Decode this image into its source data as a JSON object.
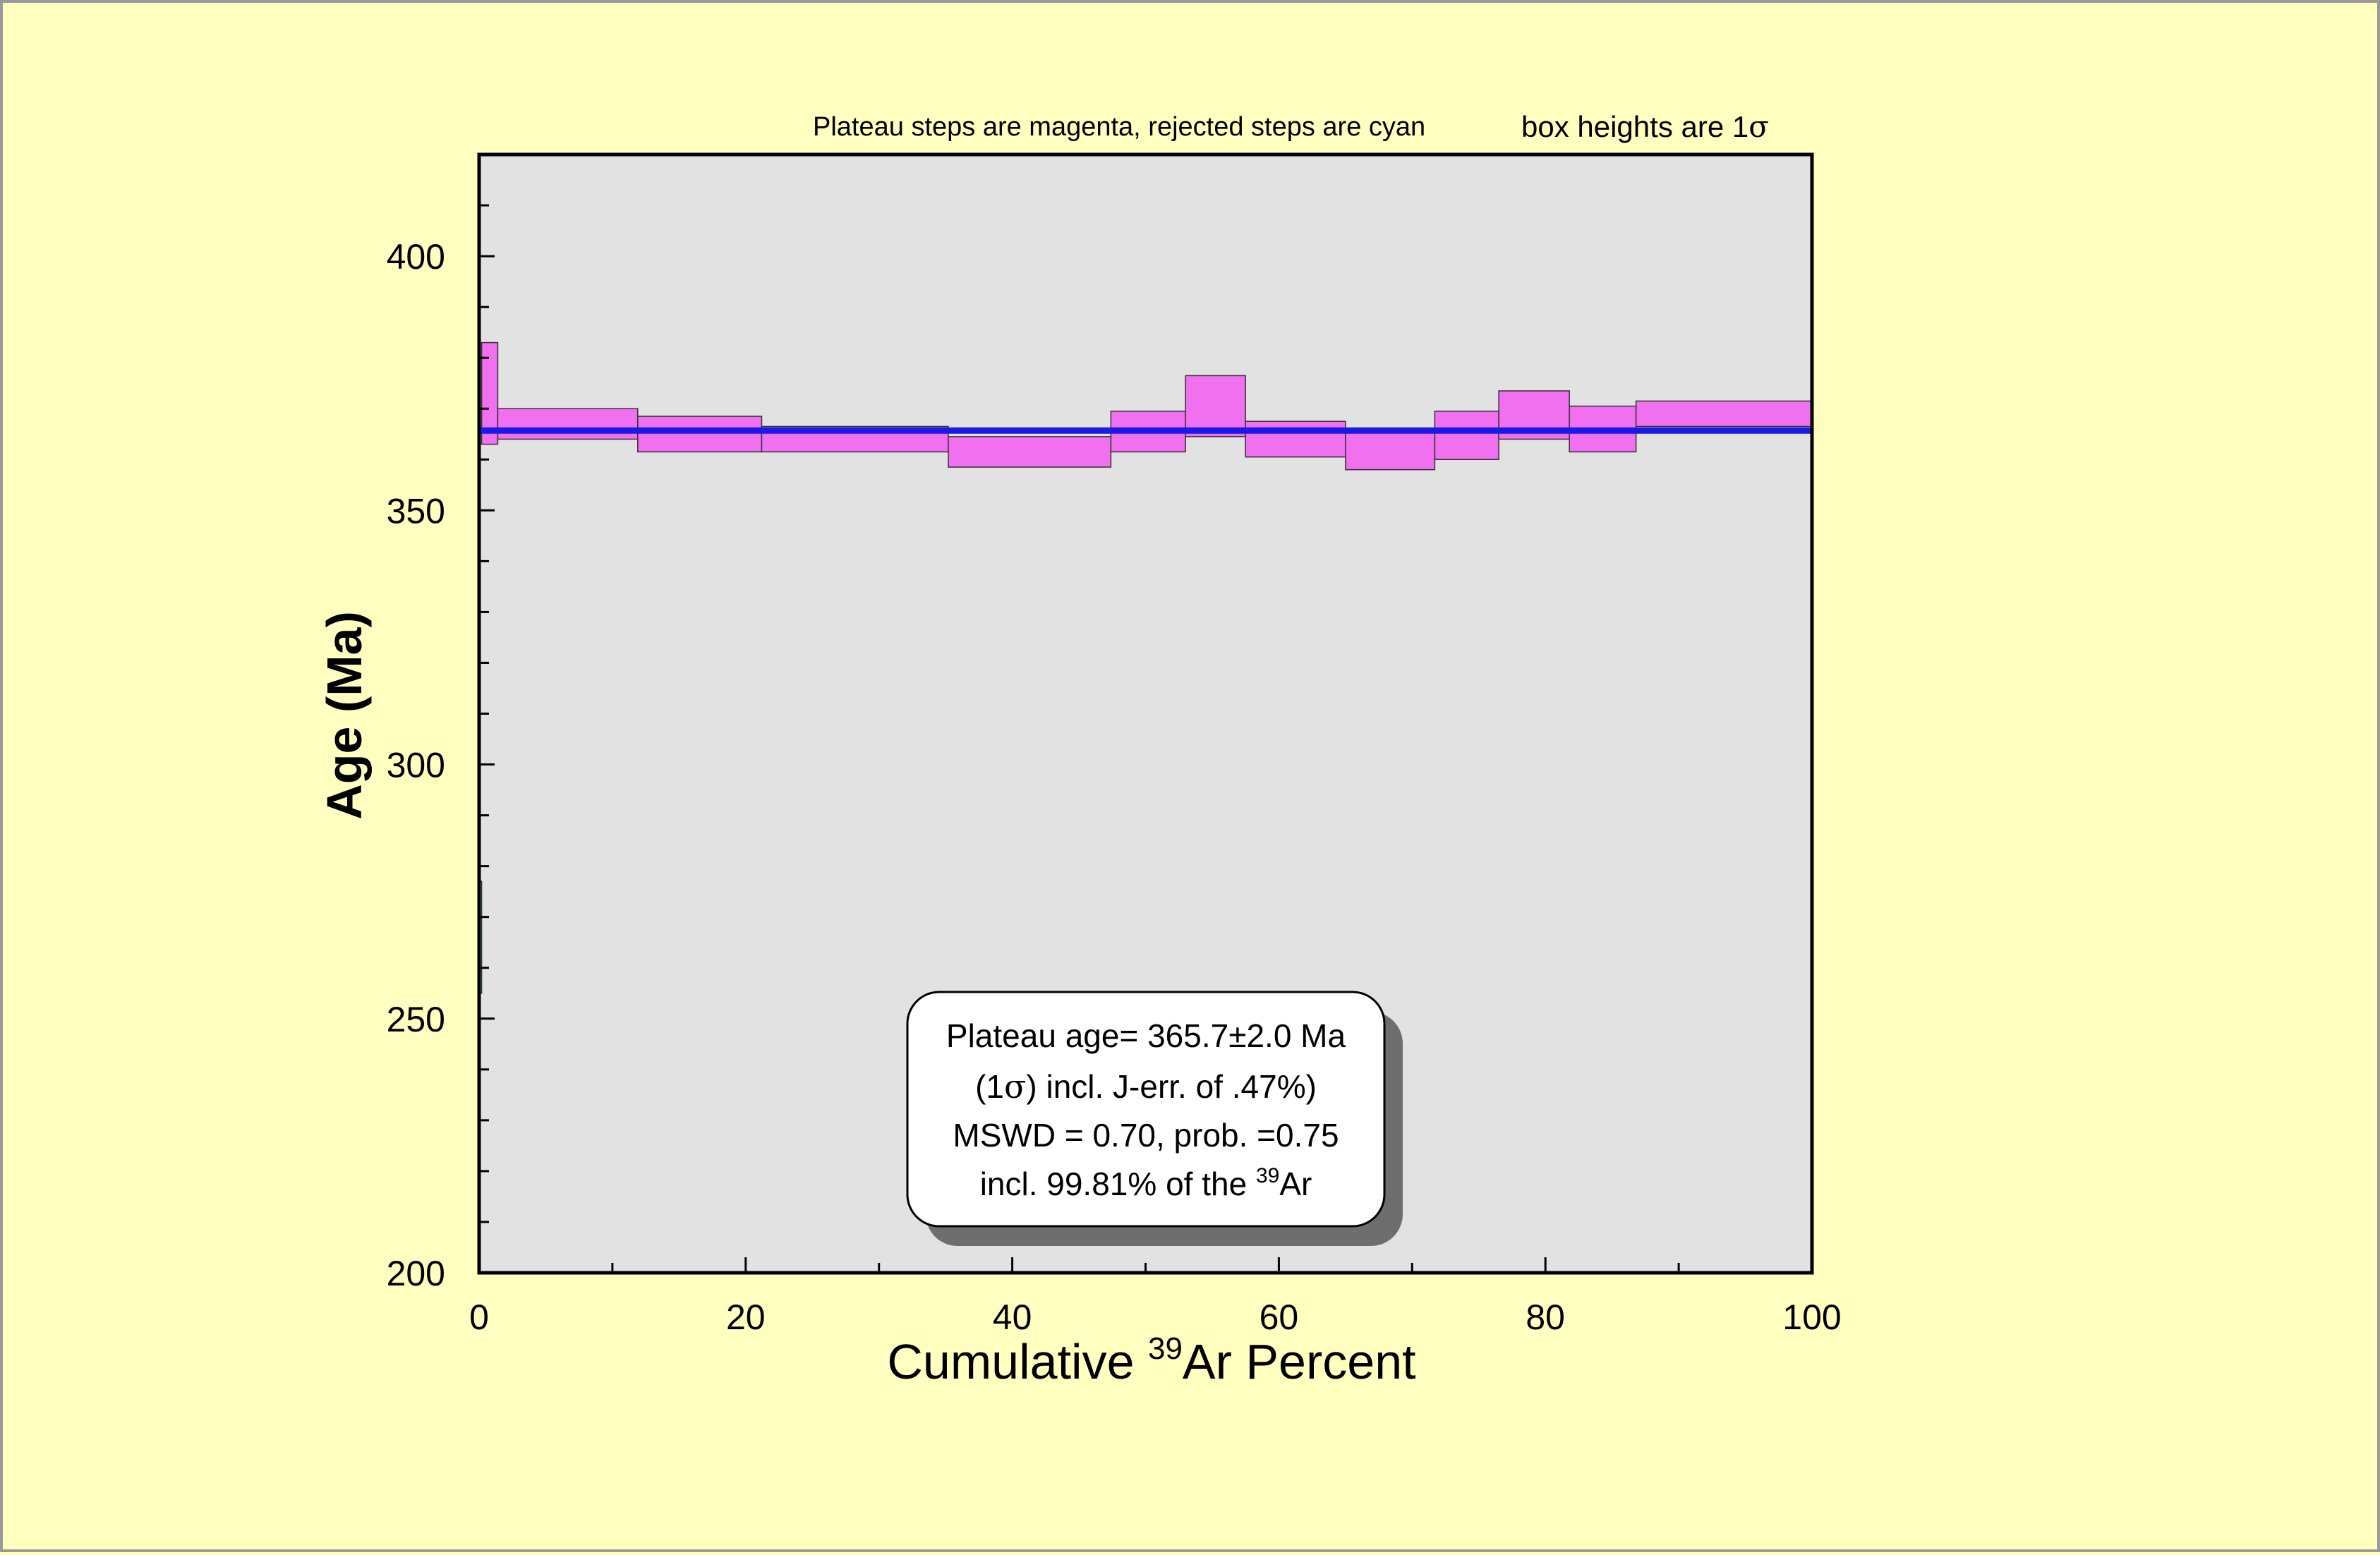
{
  "chart_data": {
    "type": "plateau",
    "notes": {
      "left": "Plateau steps are magenta, rejected steps are cyan",
      "right_prefix": "box heights are 1",
      "right_sigma": "σ"
    },
    "xlabel": {
      "prefix": "Cumulative ",
      "sup": "39",
      "suffix": "Ar Percent"
    },
    "ylabel": "Age (Ma)",
    "xlim": [
      0,
      100
    ],
    "ylim": [
      200,
      420
    ],
    "xticks": [
      0,
      20,
      40,
      60,
      80,
      100
    ],
    "xtick_labels": [
      "0",
      "20",
      "40",
      "60",
      "80",
      "100"
    ],
    "x_minor_step": 10,
    "yticks": [
      200,
      250,
      300,
      350,
      400
    ],
    "ytick_labels": [
      "200",
      "250",
      "300",
      "350",
      "400"
    ],
    "y_minor_step": 10,
    "plateau_age": 365.7,
    "colors": {
      "plot_bg": "#e2e2e2",
      "page_bg": "#ffffc0",
      "plateau_step": "#f070f0",
      "rejected_step": "#80f0f0",
      "plateau_line": "#1a1ae6",
      "border": "#000000"
    },
    "steps": [
      {
        "x0": 0.0,
        "x1": 0.19,
        "ylo": 255,
        "yhi": 277,
        "status": "rejected"
      },
      {
        "x0": 0.19,
        "x1": 1.4,
        "ylo": 363,
        "yhi": 383,
        "status": "plateau"
      },
      {
        "x0": 1.4,
        "x1": 11.9,
        "ylo": 364,
        "yhi": 370,
        "status": "plateau"
      },
      {
        "x0": 11.9,
        "x1": 21.2,
        "ylo": 361.5,
        "yhi": 368.5,
        "status": "plateau"
      },
      {
        "x0": 21.2,
        "x1": 35.2,
        "ylo": 361.5,
        "yhi": 366.5,
        "status": "plateau"
      },
      {
        "x0": 35.2,
        "x1": 47.4,
        "ylo": 358.5,
        "yhi": 364.5,
        "status": "plateau"
      },
      {
        "x0": 47.4,
        "x1": 53.0,
        "ylo": 361.5,
        "yhi": 369.5,
        "status": "plateau"
      },
      {
        "x0": 53.0,
        "x1": 57.5,
        "ylo": 364.5,
        "yhi": 376.5,
        "status": "plateau"
      },
      {
        "x0": 57.5,
        "x1": 65.0,
        "ylo": 360.5,
        "yhi": 367.5,
        "status": "plateau"
      },
      {
        "x0": 65.0,
        "x1": 71.7,
        "ylo": 358,
        "yhi": 365.5,
        "status": "plateau"
      },
      {
        "x0": 71.7,
        "x1": 76.5,
        "ylo": 360,
        "yhi": 369.5,
        "status": "plateau"
      },
      {
        "x0": 76.5,
        "x1": 81.8,
        "ylo": 364,
        "yhi": 373.5,
        "status": "plateau"
      },
      {
        "x0": 81.8,
        "x1": 86.8,
        "ylo": 361.5,
        "yhi": 370.5,
        "status": "plateau"
      },
      {
        "x0": 86.8,
        "x1": 100,
        "ylo": 366.5,
        "yhi": 371.5,
        "status": "plateau"
      }
    ],
    "result_box": {
      "line1": "Plateau age= 365.7±2.0 Ma",
      "line2_pre": "(1",
      "line2_sigma": "σ",
      "line2_post": ") incl. J-err. of .47%)",
      "line3": "MSWD = 0.70, prob. =0.75",
      "line4_pre": "incl. 99.81% of the ",
      "line4_sup": "39",
      "line4_post": "Ar"
    }
  }
}
